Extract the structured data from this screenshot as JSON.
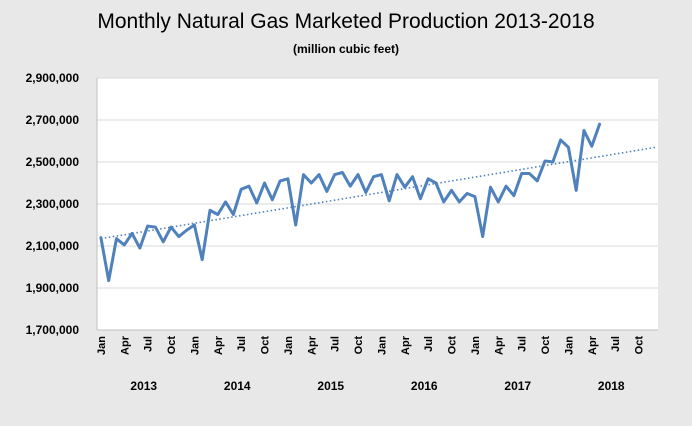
{
  "chart_data": {
    "type": "line",
    "title": "Monthly Natural Gas Marketed Production 2013-2018",
    "subtitle": "(million cubic feet)",
    "ylim": [
      1700000,
      2900000
    ],
    "yticks": [
      "1,700,000",
      "1,900,000",
      "2,100,000",
      "2,300,000",
      "2,500,000",
      "2,700,000",
      "2,900,000"
    ],
    "ytick_values": [
      1700000,
      1900000,
      2100000,
      2300000,
      2500000,
      2700000,
      2900000
    ],
    "x_tick_labels": [
      "Jan",
      "Apr",
      "Jul",
      "Oct",
      "Jan",
      "Apr",
      "Jul",
      "Oct",
      "Jan",
      "Apr",
      "Jul",
      "Oct",
      "Jan",
      "Apr",
      "Jul",
      "Oct",
      "Jan",
      "Apr",
      "Jul",
      "Oct",
      "Jan",
      "Apr",
      "Jul",
      "Oct"
    ],
    "years": [
      "2013",
      "2014",
      "2015",
      "2016",
      "2017",
      "2018"
    ],
    "grid": true,
    "colors": {
      "line": "#4f81bd",
      "trend": "#4f81bd",
      "grid": "#d9d9d9",
      "axis": "#bfbfbf"
    },
    "series": [
      {
        "values": [
          2140000,
          1935000,
          2135000,
          2105000,
          2160000,
          2090000,
          2195000,
          2190000,
          2120000,
          2190000,
          2145000,
          2175000,
          2200000,
          2035000,
          2270000,
          2250000,
          2310000,
          2250000,
          2370000,
          2385000,
          2305000,
          2400000,
          2320000,
          2410000,
          2420000,
          2200000,
          2440000,
          2400000,
          2440000,
          2360000,
          2440000,
          2450000,
          2385000,
          2440000,
          2355000,
          2430000,
          2440000,
          2315000,
          2440000,
          2380000,
          2430000,
          2325000,
          2420000,
          2400000,
          2310000,
          2365000,
          2310000,
          2350000,
          2335000,
          2145000,
          2380000,
          2310000,
          2385000,
          2340000,
          2445000,
          2445000,
          2410000,
          2505000,
          2500000,
          2605000,
          2570000,
          2365000,
          2650000,
          2575000,
          2680000
        ]
      }
    ],
    "trendline": {
      "style": "dotted",
      "start": 2135000,
      "end": 2570000
    }
  }
}
